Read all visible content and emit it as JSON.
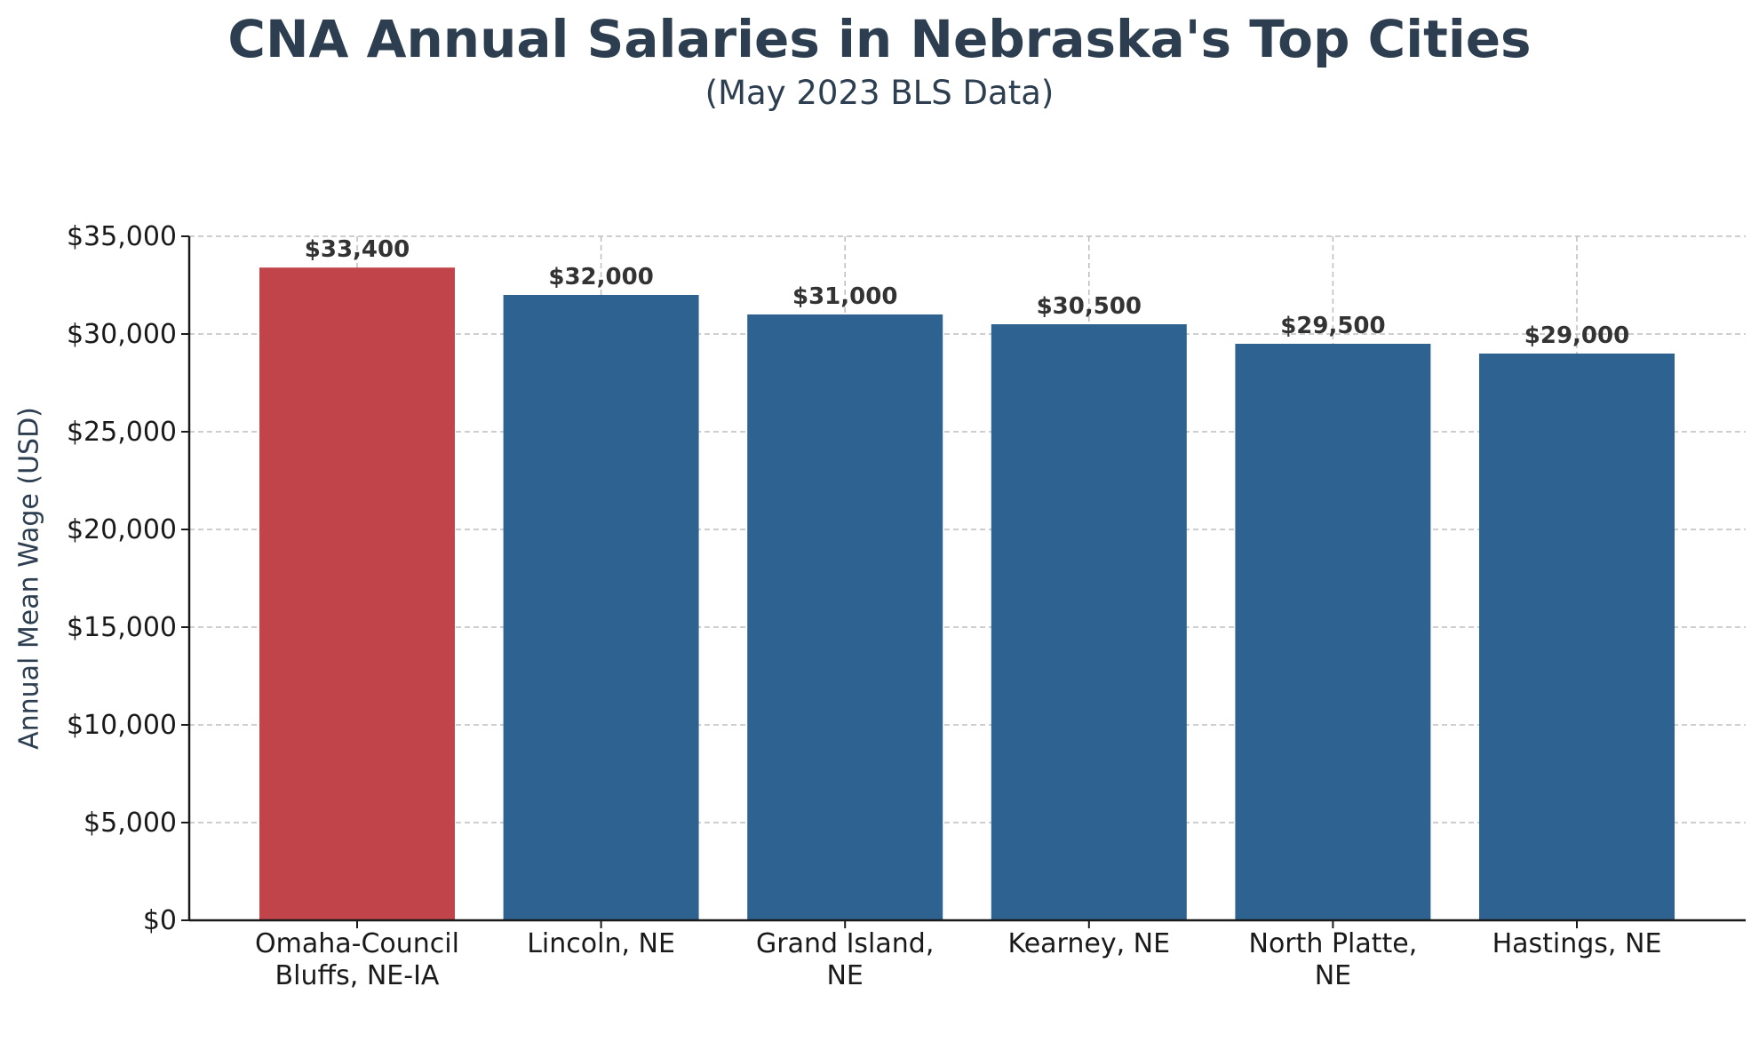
{
  "chart_data": {
    "type": "bar",
    "title": "CNA Annual Salaries in Nebraska's Top Cities",
    "subtitle": "(May 2023 BLS Data)",
    "ylabel": "Annual Mean Wage (USD)",
    "xlabel": "",
    "ylim": [
      0,
      35000
    ],
    "yticks": [
      0,
      5000,
      10000,
      15000,
      20000,
      25000,
      30000,
      35000
    ],
    "ytick_labels": [
      "$0",
      "$5,000",
      "$10,000",
      "$15,000",
      "$20,000",
      "$25,000",
      "$30,000",
      "$35,000"
    ],
    "categories": [
      [
        "Omaha-Council",
        "Bluffs, NE-IA"
      ],
      [
        "Lincoln, NE"
      ],
      [
        "Grand Island,",
        "NE"
      ],
      [
        "Kearney, NE"
      ],
      [
        "North Platte,",
        "NE"
      ],
      [
        "Hastings, NE"
      ]
    ],
    "values": [
      33400,
      32000,
      31000,
      30500,
      29500,
      29000
    ],
    "value_labels": [
      "$33,400",
      "$32,000",
      "$31,000",
      "$30,500",
      "$29,500",
      "$29,000"
    ],
    "bar_colors": [
      "#c0444a",
      "#2e6391",
      "#2e6391",
      "#2e6391",
      "#2e6391",
      "#2e6391"
    ],
    "grid": true
  }
}
